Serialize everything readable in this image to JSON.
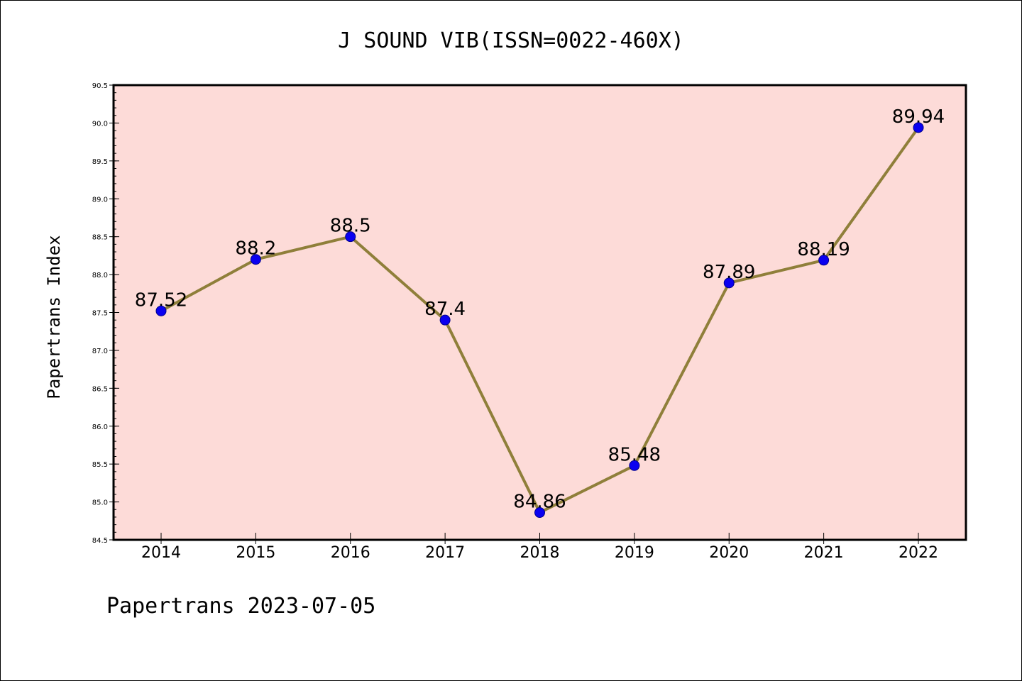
{
  "chart_data": {
    "type": "line",
    "title": "J SOUND VIB(ISSN=0022-460X)",
    "ylabel": "Papertrans Index",
    "xlabel": "",
    "categories": [
      "2014",
      "2015",
      "2016",
      "2017",
      "2018",
      "2019",
      "2020",
      "2021",
      "2022"
    ],
    "series": [
      {
        "values": [
          87.52,
          88.2,
          88.5,
          87.4,
          84.86,
          85.48,
          87.89,
          88.19,
          89.94
        ]
      }
    ],
    "data_labels": [
      "87.52",
      "88.2",
      "88.5",
      "87.4",
      "84.86",
      "85.48",
      "87.89",
      "88.19",
      "89.94"
    ],
    "ylim": [
      84.5,
      90.5
    ],
    "yticks": [
      "84.5",
      "85.0",
      "85.5",
      "86.0",
      "86.5",
      "87.0",
      "87.5",
      "88.0",
      "88.5",
      "89.0",
      "89.5",
      "90.0",
      "90.5"
    ],
    "grid": false,
    "legend": "none",
    "colors": {
      "plot_background": "#fddbd8",
      "line": "#8f7f3a",
      "marker": "#0a00f0",
      "marker_edge": "#00008b"
    }
  },
  "footer": "Papertrans 2023-07-05"
}
